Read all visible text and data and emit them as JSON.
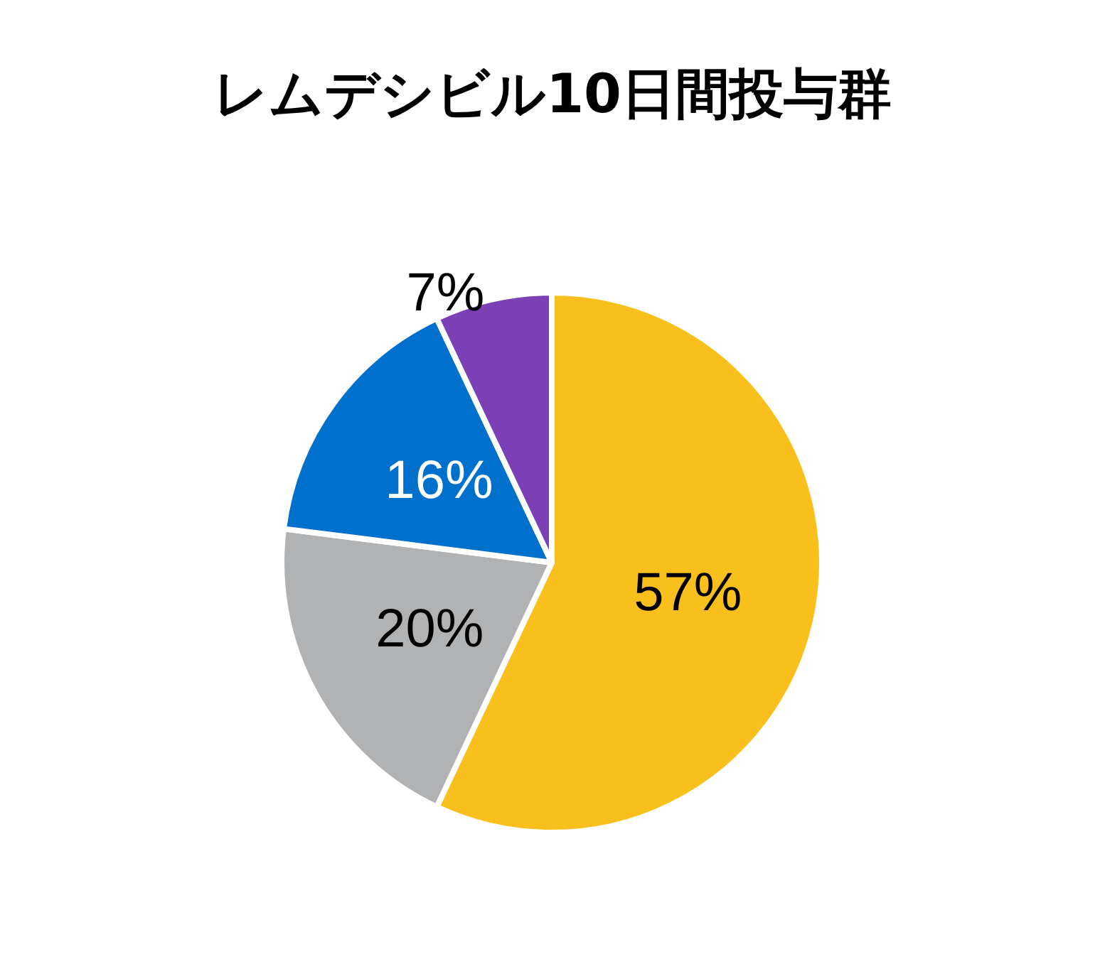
{
  "chart_data": {
    "type": "pie",
    "title": "レムデシビル10日間投与群",
    "categories": [
      null,
      null,
      null,
      null
    ],
    "values": [
      57,
      20,
      16,
      7
    ],
    "colors": [
      "#f9c01d",
      "#b1b2b4",
      "#0070cd",
      "#7b40b5"
    ],
    "value_labels": [
      "57%",
      "20%",
      "16%",
      "7%"
    ]
  }
}
